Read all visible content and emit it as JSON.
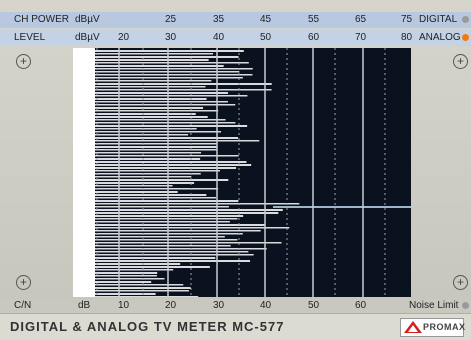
{
  "top_scale": {
    "ch_power": {
      "label": "CH POWER",
      "unit": "dBµV",
      "ticks": [
        "25",
        "35",
        "45",
        "55",
        "65",
        "75"
      ]
    },
    "level": {
      "label": "LEVEL",
      "unit": "dBµV",
      "ticks": [
        "20",
        "30",
        "40",
        "50",
        "60",
        "70",
        "80"
      ]
    },
    "digital": {
      "label": "DIGITAL",
      "indicator_color": "#9a9a9a"
    },
    "analog": {
      "label": "ANALOG",
      "indicator_color": "#f07a10"
    }
  },
  "bottom_scale": {
    "cn": {
      "label": "C/N",
      "unit": "dB",
      "ticks": [
        "10",
        "20",
        "30",
        "40",
        "50",
        "60"
      ]
    },
    "noise_limit": {
      "label": "Noise Limit",
      "indicator_color": "#9a9a9a"
    }
  },
  "footer": {
    "title": "DIGITAL & ANALOG TV METER  MC-577",
    "brand": "PROMAX"
  },
  "colors": {
    "display_bg": "#0a1220",
    "trace": "#ffffff",
    "brand_red": "#d21f1f"
  }
}
